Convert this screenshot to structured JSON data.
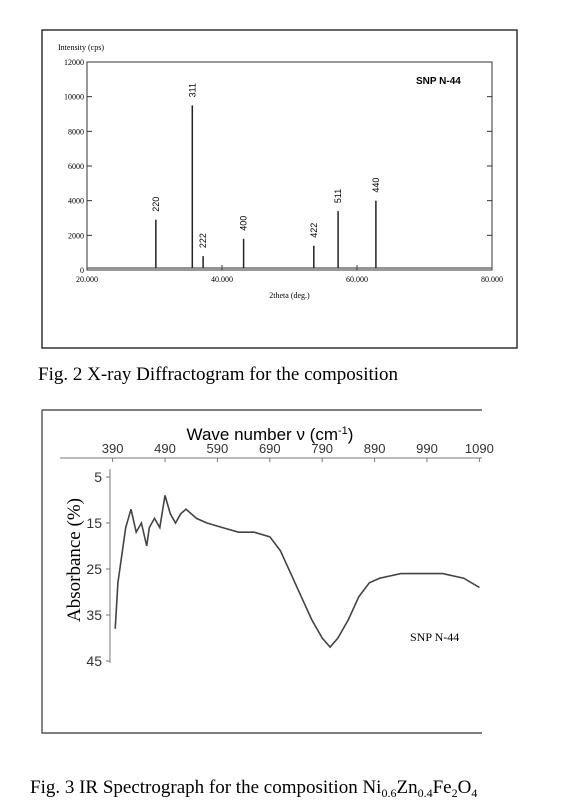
{
  "chart_data": [
    {
      "type": "stem",
      "xlabel": "2theta (deg.)",
      "ylabel": "Intensity (cps)",
      "annotation": "SNP N-44",
      "x": [
        30.2,
        35.6,
        37.2,
        43.2,
        53.6,
        57.2,
        62.8
      ],
      "values": [
        2900,
        9500,
        800,
        1800,
        1400,
        3400,
        4000
      ],
      "peak_labels": [
        "220",
        "311",
        "222",
        "400",
        "422",
        "511",
        "440"
      ],
      "color": "#222222",
      "xlim": [
        20,
        80
      ],
      "ylim": [
        0,
        12000
      ],
      "xticks": [
        {
          "value": 20,
          "label": "20.000"
        },
        {
          "value": 40,
          "label": "40.000"
        },
        {
          "value": 60,
          "label": "60.000"
        },
        {
          "value": 80,
          "label": "80.000"
        }
      ],
      "yticks": [
        0,
        2000,
        4000,
        6000,
        8000,
        10000,
        12000
      ],
      "caption": "Fig. 2  X-ray Diffractogram for the composition"
    },
    {
      "type": "line",
      "title_parts": [
        "Wave number ν (cm",
        "-1",
        ")"
      ],
      "ylabel": "Absorbance (%)",
      "annotation": "SNP N-44",
      "x": [
        395,
        400,
        405,
        415,
        425,
        435,
        445,
        455,
        460,
        470,
        480,
        490,
        500,
        510,
        520,
        530,
        550,
        570,
        600,
        630,
        660,
        690,
        710,
        730,
        750,
        770,
        790,
        805,
        820,
        840,
        860,
        880,
        900,
        940,
        980,
        1020,
        1060,
        1090
      ],
      "values": [
        38,
        28,
        24,
        16,
        12,
        17,
        15,
        20,
        16,
        14,
        16,
        9,
        13,
        15,
        13,
        12,
        14,
        15,
        16,
        17,
        17,
        18,
        21,
        26,
        31,
        36,
        40,
        42,
        40,
        36,
        31,
        28,
        27,
        26,
        26,
        26,
        27,
        29
      ],
      "color": "#444444",
      "xlim": [
        385,
        1095
      ],
      "ylim": [
        5,
        45
      ],
      "y_inverted": true,
      "x_axis_position": "top",
      "xticks": [
        390,
        490,
        590,
        690,
        790,
        890,
        990,
        1090
      ],
      "yticks": [
        5,
        15,
        25,
        35,
        45
      ],
      "caption_parts": [
        "Fig. 3 IR Spectrograph for the composition Ni",
        "0.6",
        "Zn",
        "0.4",
        "Fe",
        "2",
        "O",
        "4"
      ]
    }
  ]
}
